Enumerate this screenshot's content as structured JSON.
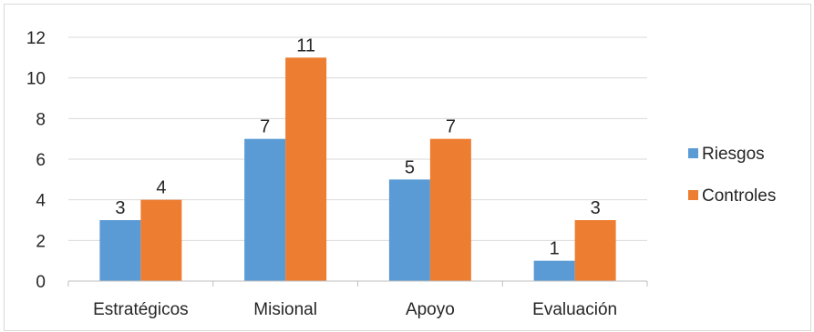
{
  "chart_data": {
    "type": "bar",
    "categories": [
      "Estratégicos",
      "Misional",
      "Apoyo",
      "Evaluación"
    ],
    "series": [
      {
        "name": "Riesgos",
        "values": [
          3,
          7,
          5,
          1
        ],
        "color": "#5b9bd5"
      },
      {
        "name": "Controles",
        "values": [
          4,
          11,
          7,
          3
        ],
        "color": "#ed7d31"
      }
    ],
    "ylim": [
      0,
      12
    ],
    "yticks": [
      0,
      2,
      4,
      6,
      8,
      10,
      12
    ],
    "grid": true,
    "legend": "right",
    "data_labels": true
  }
}
